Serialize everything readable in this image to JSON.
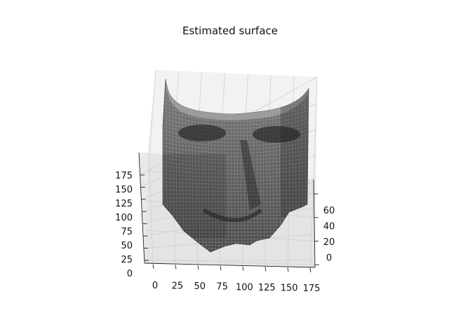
{
  "chart_data": {
    "type": "surface3d",
    "title": "Estimated surface",
    "xlabel": "",
    "ylabel": "",
    "zlabel": "",
    "x_ticks": [
      "0",
      "25",
      "50",
      "75",
      "100",
      "125",
      "150",
      "175"
    ],
    "y_ticks": [
      "0",
      "20",
      "40",
      "60"
    ],
    "z_ticks": [
      "0",
      "25",
      "50",
      "75",
      "100",
      "125",
      "150",
      "175"
    ],
    "xlim": [
      0,
      180
    ],
    "ylim": [
      0,
      65
    ],
    "zlim": [
      0,
      185
    ],
    "grid": true,
    "colormap": "gray",
    "pane_color": "#f2f2f2",
    "surface_description_colors": {
      "light": "#8a8a8a",
      "dark": "#2e2e2e",
      "edge": "#9c9c9c"
    }
  }
}
